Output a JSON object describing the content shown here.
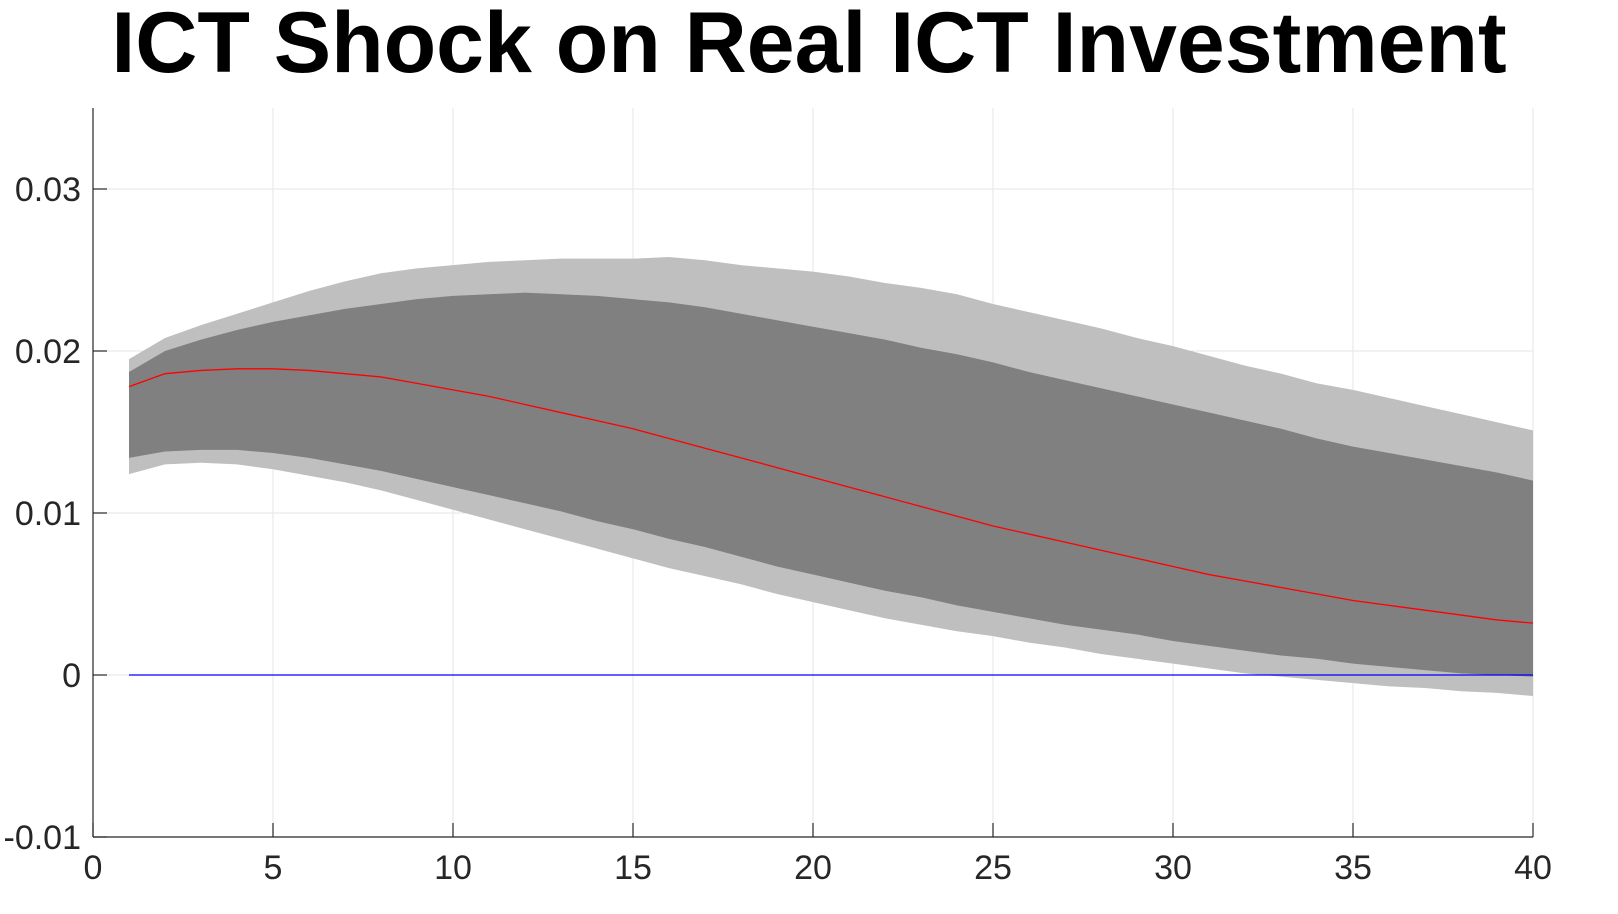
{
  "chart_data": {
    "type": "area",
    "title": "ICT Shock on Real ICT Investment",
    "xlabel": "",
    "ylabel": "",
    "xlim": [
      0,
      40
    ],
    "ylim": [
      -0.01,
      0.035
    ],
    "grid": true,
    "x": [
      1,
      2,
      3,
      4,
      5,
      6,
      7,
      8,
      9,
      10,
      11,
      12,
      13,
      14,
      15,
      16,
      17,
      18,
      19,
      20,
      21,
      22,
      23,
      24,
      25,
      26,
      27,
      28,
      29,
      30,
      31,
      32,
      33,
      34,
      35,
      36,
      37,
      38,
      39,
      40
    ],
    "series": [
      {
        "role": "outer-band",
        "color": "#bfbfbf",
        "upper": [
          0.0195,
          0.0208,
          0.0216,
          0.0223,
          0.023,
          0.0237,
          0.0243,
          0.0248,
          0.0251,
          0.0253,
          0.0255,
          0.0256,
          0.0257,
          0.0257,
          0.0257,
          0.0258,
          0.0256,
          0.0253,
          0.0251,
          0.0249,
          0.0246,
          0.0242,
          0.0239,
          0.0235,
          0.0229,
          0.0224,
          0.0219,
          0.0214,
          0.0208,
          0.0203,
          0.0197,
          0.0191,
          0.0186,
          0.018,
          0.0176,
          0.0171,
          0.0166,
          0.0161,
          0.0156,
          0.0151
        ],
        "lower": [
          0.0124,
          0.013,
          0.0131,
          0.013,
          0.0127,
          0.0123,
          0.0119,
          0.0114,
          0.0108,
          0.0102,
          0.0096,
          0.009,
          0.0084,
          0.0078,
          0.0072,
          0.0066,
          0.0061,
          0.0056,
          0.005,
          0.0045,
          0.004,
          0.0035,
          0.0031,
          0.0027,
          0.0024,
          0.002,
          0.0017,
          0.0013,
          0.001,
          0.0007,
          0.0004,
          0.0001,
          -0.0001,
          -0.0003,
          -0.0005,
          -0.0007,
          -0.0008,
          -0.001,
          -0.0011,
          -0.0013
        ]
      },
      {
        "role": "inner-band",
        "color": "#808080",
        "upper": [
          0.0187,
          0.02,
          0.0207,
          0.0213,
          0.0218,
          0.0222,
          0.0226,
          0.0229,
          0.0232,
          0.0234,
          0.0235,
          0.0236,
          0.0235,
          0.0234,
          0.0232,
          0.023,
          0.0227,
          0.0223,
          0.0219,
          0.0215,
          0.0211,
          0.0207,
          0.0202,
          0.0198,
          0.0193,
          0.0187,
          0.0182,
          0.0177,
          0.0172,
          0.0167,
          0.0162,
          0.0157,
          0.0152,
          0.0146,
          0.0141,
          0.0137,
          0.0133,
          0.0129,
          0.0125,
          0.012
        ],
        "lower": [
          0.0134,
          0.0138,
          0.0139,
          0.0139,
          0.0137,
          0.0134,
          0.013,
          0.0126,
          0.0121,
          0.0116,
          0.0111,
          0.0106,
          0.0101,
          0.0095,
          0.009,
          0.0084,
          0.0079,
          0.0073,
          0.0067,
          0.0062,
          0.0057,
          0.0052,
          0.0048,
          0.0043,
          0.0039,
          0.0035,
          0.0031,
          0.0028,
          0.0025,
          0.0021,
          0.0018,
          0.0015,
          0.0012,
          0.001,
          0.0007,
          0.0005,
          0.0003,
          0.0001,
          0.0,
          -0.0001
        ]
      },
      {
        "role": "median",
        "color": "#ff0000",
        "values": [
          0.0178,
          0.0186,
          0.0188,
          0.0189,
          0.0189,
          0.0188,
          0.0186,
          0.0184,
          0.018,
          0.0176,
          0.0172,
          0.0167,
          0.0162,
          0.0157,
          0.0152,
          0.0146,
          0.014,
          0.0134,
          0.0128,
          0.0122,
          0.0116,
          0.011,
          0.0104,
          0.0098,
          0.0092,
          0.0087,
          0.0082,
          0.0077,
          0.0072,
          0.0067,
          0.0062,
          0.0058,
          0.0054,
          0.005,
          0.0046,
          0.0043,
          0.004,
          0.0037,
          0.0034,
          0.0032
        ]
      },
      {
        "role": "zero-line",
        "color": "#0000ff",
        "values": [
          0,
          0,
          0,
          0,
          0,
          0,
          0,
          0,
          0,
          0,
          0,
          0,
          0,
          0,
          0,
          0,
          0,
          0,
          0,
          0,
          0,
          0,
          0,
          0,
          0,
          0,
          0,
          0,
          0,
          0,
          0,
          0,
          0,
          0,
          0,
          0,
          0,
          0,
          0,
          0
        ]
      }
    ],
    "xticks": [
      0,
      5,
      10,
      15,
      20,
      25,
      30,
      35,
      40
    ],
    "xtick_labels": [
      "0",
      "5",
      "10",
      "15",
      "20",
      "25",
      "30",
      "35",
      "40"
    ],
    "yticks": [
      -0.01,
      0,
      0.01,
      0.02,
      0.03
    ],
    "ytick_labels": [
      "-0.01",
      "0",
      "0.01",
      "0.02",
      "0.03"
    ],
    "grid_color": "#e6e6e6",
    "axis_color": "#262626"
  }
}
